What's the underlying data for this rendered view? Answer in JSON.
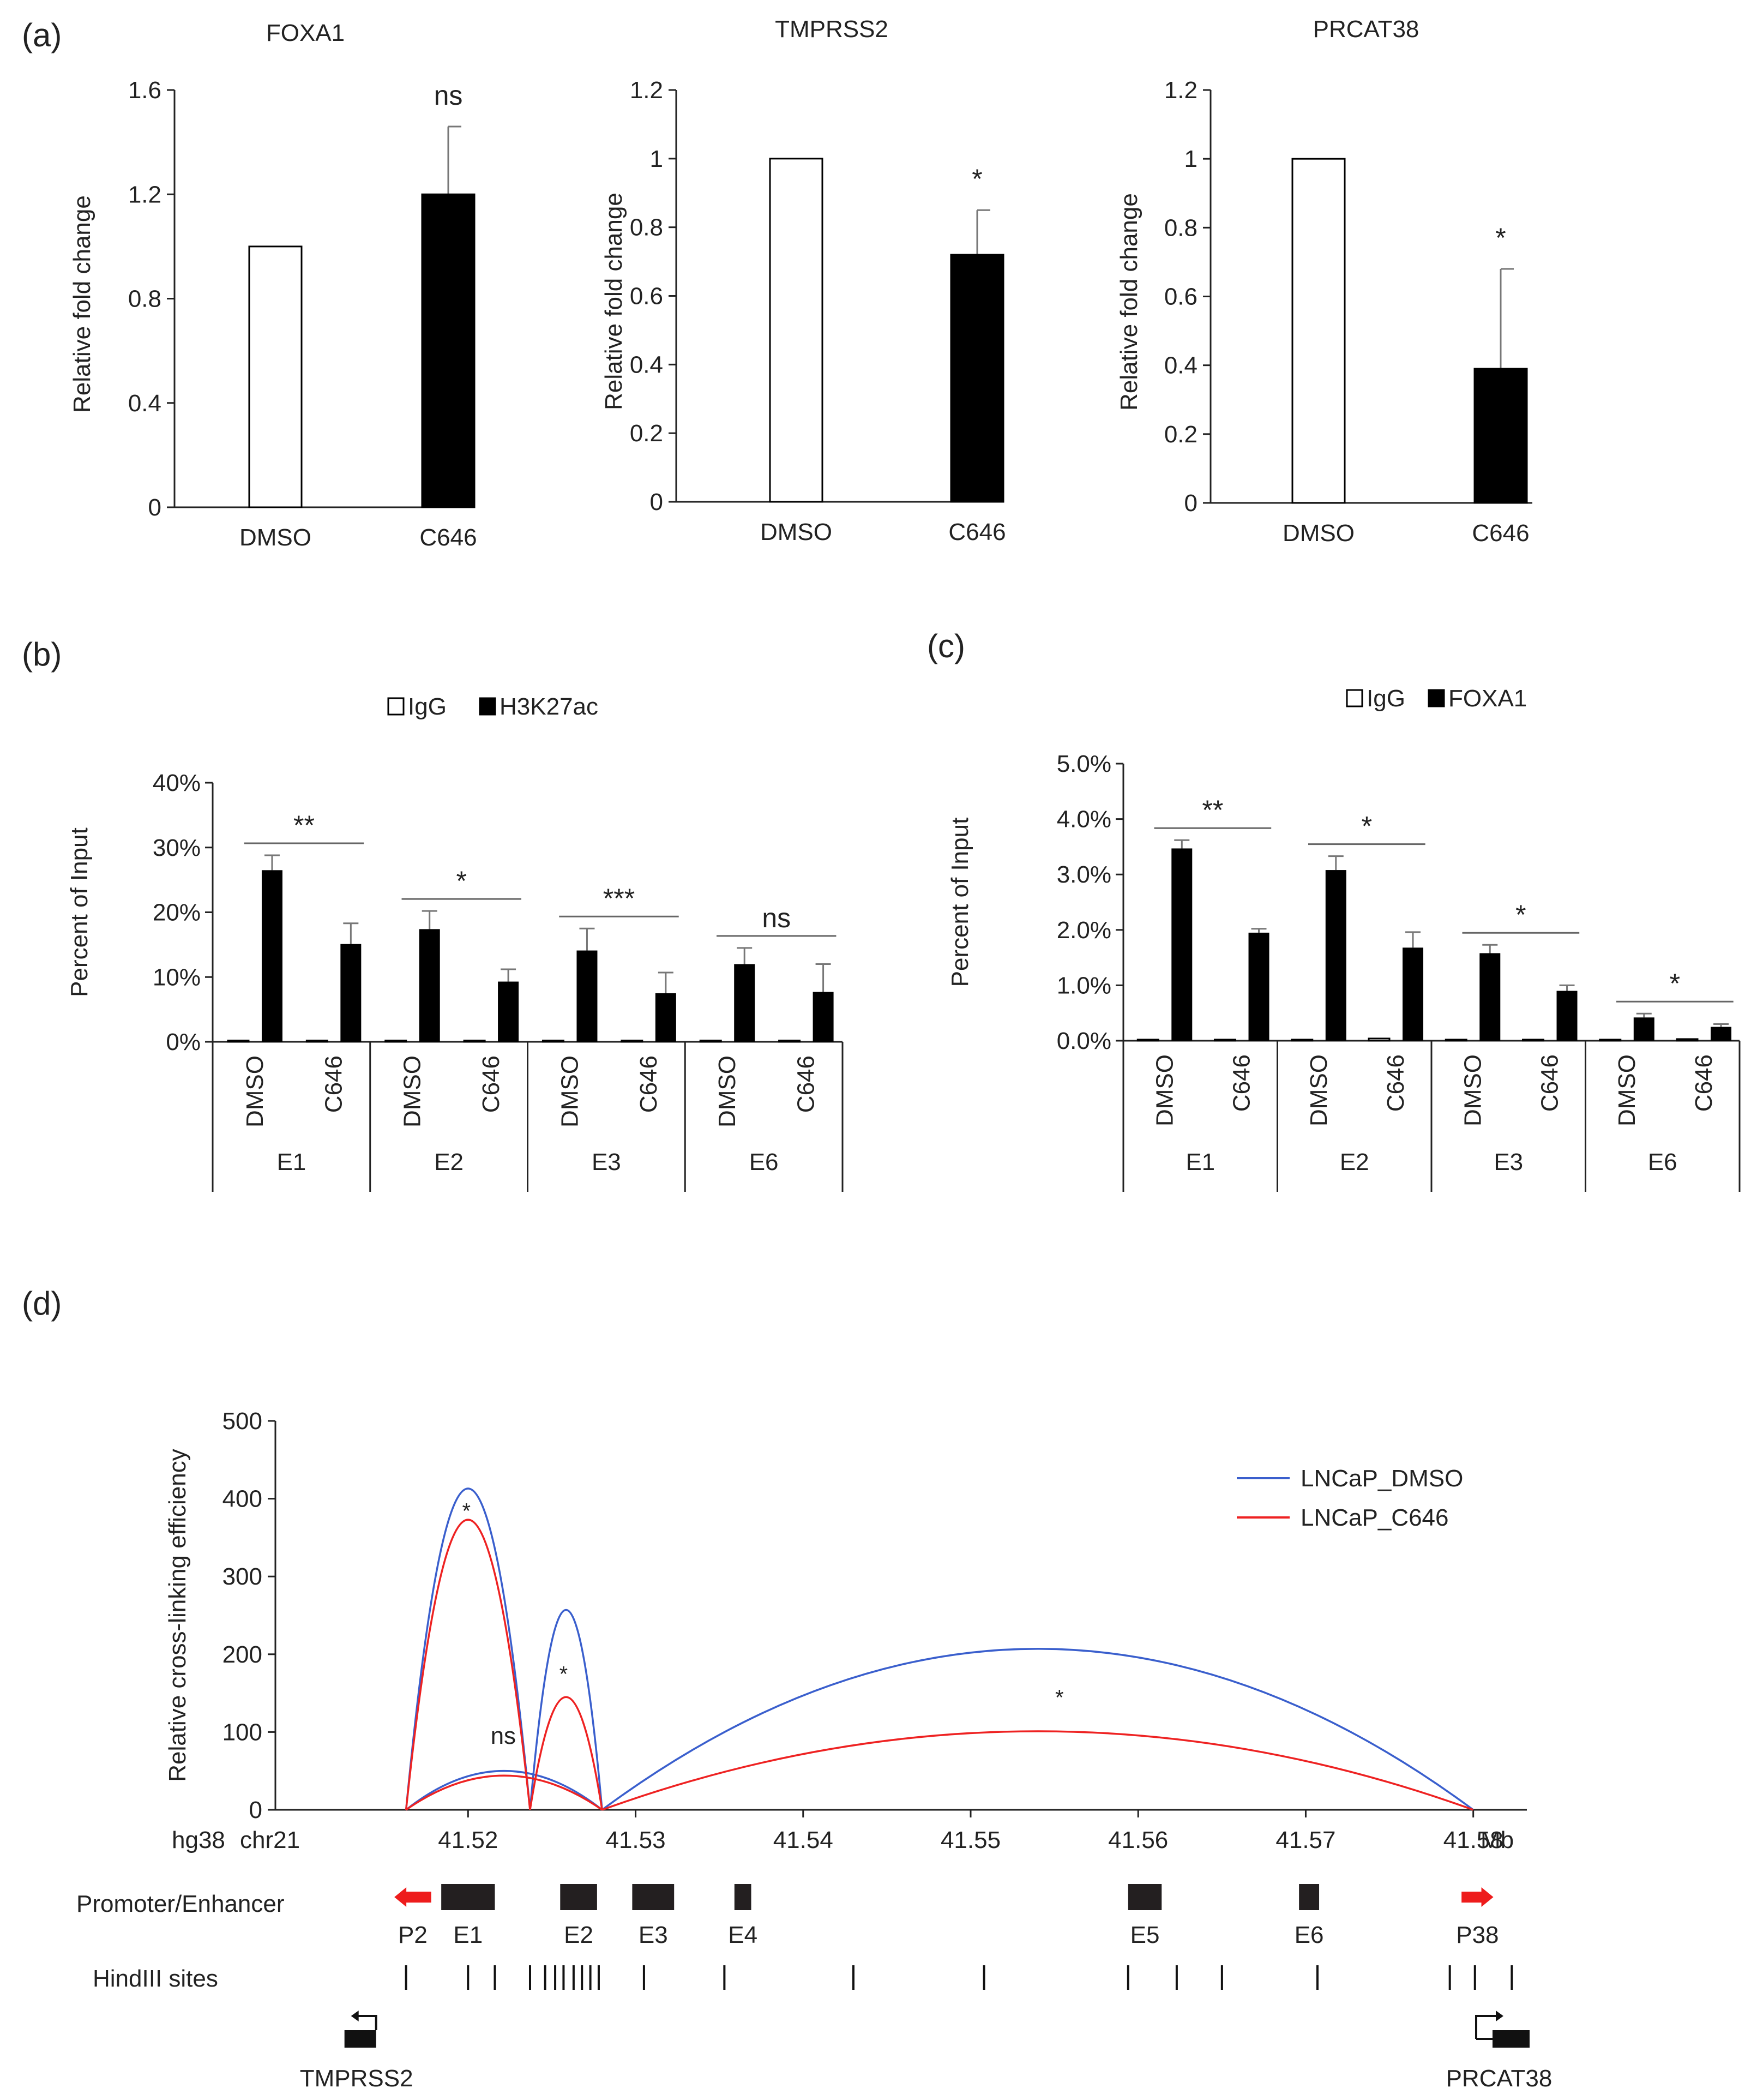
{
  "panels": {
    "a": {
      "label": "(a)"
    },
    "b": {
      "label": "(b)"
    },
    "c": {
      "label": "(c)"
    },
    "d": {
      "label": "(d)"
    }
  },
  "colors": {
    "bar_fill": "#000000",
    "bar_open": "#ffffff",
    "dmso_line": "#3a5fcd",
    "c646_line": "#ee2222",
    "arrow": "#ee1c1c",
    "block": "#231f20"
  },
  "chart_data": [
    {
      "id": "a1",
      "type": "bar",
      "title": "FOXA1",
      "ylabel": "Relative  fold change",
      "ylim": [
        0,
        1.6
      ],
      "yticks": [
        "0",
        "0.4",
        "0.8",
        "1.2",
        "1.6"
      ],
      "categories": [
        "DMSO",
        "C646"
      ],
      "values": [
        1.0,
        1.2
      ],
      "errors": [
        0,
        0.26
      ],
      "significance": "ns"
    },
    {
      "id": "a2",
      "type": "bar",
      "title": "TMPRSS2",
      "ylabel": "Relative  fold change",
      "ylim": [
        0,
        1.2
      ],
      "yticks": [
        "0",
        "0.2",
        "0.4",
        "0.6",
        "0.8",
        "1",
        "1.2"
      ],
      "categories": [
        "DMSO",
        "C646"
      ],
      "values": [
        1.0,
        0.72
      ],
      "errors": [
        0,
        0.13
      ],
      "significance": "*"
    },
    {
      "id": "a3",
      "type": "bar",
      "title": "PRCAT38",
      "ylabel": "Relative  fold change",
      "ylim": [
        0,
        1.2
      ],
      "yticks": [
        "0",
        "0.2",
        "0.4",
        "0.6",
        "0.8",
        "1",
        "1.2"
      ],
      "categories": [
        "DMSO",
        "C646"
      ],
      "values": [
        1.0,
        0.39
      ],
      "errors": [
        0,
        0.29
      ],
      "significance": "*"
    },
    {
      "id": "b",
      "type": "bar",
      "ylabel": "Percent of Input",
      "ylim": [
        0,
        40
      ],
      "yticks": [
        "0%",
        "10%",
        "20%",
        "30%",
        "40%"
      ],
      "legend": [
        "IgG",
        "H3K27ac"
      ],
      "groups": [
        "E1",
        "E2",
        "E3",
        "E6"
      ],
      "treatments": [
        "DMSO",
        "C646"
      ],
      "series": [
        {
          "name": "IgG",
          "values": [
            0.2,
            0.2,
            0.2,
            0.2,
            0.2,
            0.2,
            0.2,
            0.2
          ]
        },
        {
          "name": "H3K27ac",
          "values": [
            26.5,
            15.1,
            17.4,
            9.3,
            14.1,
            7.5,
            12.0,
            7.7
          ],
          "errors": [
            2.3,
            3.2,
            2.8,
            1.9,
            3.4,
            3.2,
            2.5,
            4.3
          ]
        }
      ],
      "significance": [
        "**",
        "*",
        "***",
        "ns"
      ]
    },
    {
      "id": "c",
      "type": "bar",
      "ylabel": "Percent of Input",
      "ylim": [
        0,
        5.0
      ],
      "yticks": [
        "0.0%",
        "1.0%",
        "2.0%",
        "3.0%",
        "4.0%",
        "5.0%"
      ],
      "legend": [
        "IgG",
        "FOXA1"
      ],
      "groups": [
        "E1",
        "E2",
        "E3",
        "E6"
      ],
      "treatments": [
        "DMSO",
        "C646"
      ],
      "series": [
        {
          "name": "IgG",
          "values": [
            0.02,
            0.02,
            0.02,
            0.04,
            0.02,
            0.02,
            0.02,
            0.03
          ]
        },
        {
          "name": "FOXA1",
          "values": [
            3.47,
            1.95,
            3.08,
            1.68,
            1.58,
            0.9,
            0.42,
            0.25
          ],
          "errors": [
            0.15,
            0.07,
            0.25,
            0.28,
            0.15,
            0.1,
            0.07,
            0.05
          ]
        }
      ],
      "significance": [
        "**",
        "*",
        "*",
        "*"
      ]
    },
    {
      "id": "d",
      "type": "line",
      "ylabel": "Relative cross-linking efficiency",
      "ylim": [
        0,
        500
      ],
      "yticks": [
        "0",
        "100",
        "200",
        "300",
        "400",
        "500"
      ],
      "xlim": [
        41.5085,
        41.5832
      ],
      "xticks": [
        "41.52",
        "41.53",
        "41.54",
        "41.55",
        "41.56",
        "41.57",
        "41.58"
      ],
      "x_prefix": [
        "hg38",
        "chr21"
      ],
      "x_unit": "Mb",
      "series": [
        {
          "name": "LNCaP_DMSO",
          "arcs": [
            {
              "start": 41.5163,
              "end": 41.5237,
              "peak": 413
            },
            {
              "start": 41.5237,
              "end": 41.528,
              "peak": 257
            },
            {
              "start": 41.5163,
              "end": 41.528,
              "peak": 50
            },
            {
              "start": 41.528,
              "end": 41.58,
              "peak": 207
            }
          ]
        },
        {
          "name": "LNCaP_C646",
          "arcs": [
            {
              "start": 41.5163,
              "end": 41.5237,
              "peak": 373
            },
            {
              "start": 41.5237,
              "end": 41.528,
              "peak": 145
            },
            {
              "start": 41.5163,
              "end": 41.528,
              "peak": 44
            },
            {
              "start": 41.528,
              "end": 41.58,
              "peak": 101
            }
          ]
        }
      ],
      "annotations": [
        {
          "text": "*",
          "x": 41.5199,
          "y": 375
        },
        {
          "text": "*",
          "x": 41.5257,
          "y": 165
        },
        {
          "text": "ns",
          "x": 41.5221,
          "y": 85
        },
        {
          "text": "*",
          "x": 41.5553,
          "y": 135
        }
      ],
      "tracks": {
        "promoter_label": "Promoter/Enhancer",
        "hindiii_label": "HindIII sites",
        "elements": [
          {
            "name": "P2",
            "kind": "arrow-left",
            "start": 41.5156,
            "end": 41.5178
          },
          {
            "name": "E1",
            "kind": "block",
            "start": 41.5184,
            "end": 41.5216
          },
          {
            "name": "E2",
            "kind": "block",
            "start": 41.5255,
            "end": 41.5277
          },
          {
            "name": "E3",
            "kind": "block",
            "start": 41.5298,
            "end": 41.5323
          },
          {
            "name": "E4",
            "kind": "block",
            "start": 41.5359,
            "end": 41.5369
          },
          {
            "name": "E5",
            "kind": "block",
            "start": 41.5594,
            "end": 41.5614
          },
          {
            "name": "E6",
            "kind": "block",
            "start": 41.5696,
            "end": 41.5708
          },
          {
            "name": "P38",
            "kind": "arrow-right",
            "start": 41.5793,
            "end": 41.5812
          }
        ],
        "hindiii_sites": [
          41.5163,
          41.52,
          41.5216,
          41.5237,
          41.5246,
          41.5252,
          41.5257,
          41.5263,
          41.5268,
          41.5273,
          41.5278,
          41.5305,
          41.5353,
          41.543,
          41.5508,
          41.5594,
          41.5623,
          41.565,
          41.5707,
          41.5786,
          41.5801,
          41.5823
        ],
        "genes": [
          {
            "name": "TMPRSS2",
            "x": 41.5136,
            "dir": "left"
          },
          {
            "name": "PRCAT38",
            "x": 41.5818,
            "dir": "right"
          }
        ]
      }
    }
  ]
}
